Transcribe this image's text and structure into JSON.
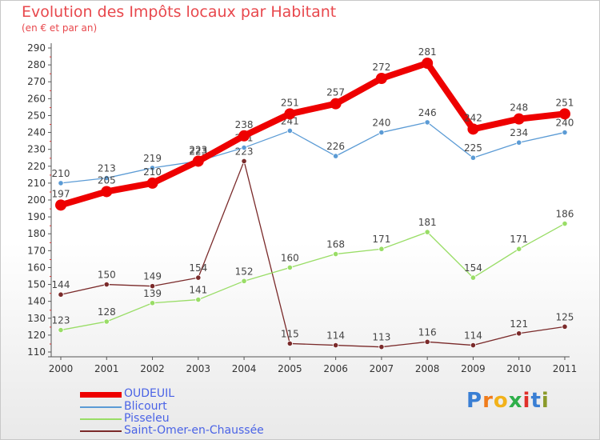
{
  "header": {
    "title": "Evolution des Impôts locaux par Habitant",
    "subtitle": "(en € et par an)"
  },
  "chart_data": {
    "type": "line",
    "title": "Evolution des Impôts locaux par Habitant",
    "subtitle": "(en € et par an)",
    "xlabel": "",
    "ylabel": "",
    "categories": [
      "2000",
      "2001",
      "2002",
      "2003",
      "2004",
      "2005",
      "2006",
      "2007",
      "2008",
      "2009",
      "2010",
      "2011"
    ],
    "ylim": [
      110,
      290
    ],
    "yticks": [
      110,
      120,
      130,
      140,
      150,
      160,
      170,
      180,
      190,
      200,
      210,
      220,
      230,
      240,
      250,
      260,
      270,
      280,
      290
    ],
    "grid": false,
    "legend_position": "bottom-left",
    "series": [
      {
        "name": "OUDEUIL",
        "color": "#ee0000",
        "values": [
          197,
          205,
          210,
          223,
          238,
          251,
          257,
          272,
          281,
          242,
          248,
          251
        ]
      },
      {
        "name": "Blicourt",
        "color": "#5b9bd5",
        "values": [
          210,
          213,
          219,
          223,
          231,
          241,
          226,
          240,
          246,
          225,
          234,
          240
        ]
      },
      {
        "name": "Pisseleu",
        "color": "#99dd66",
        "values": [
          123,
          128,
          139,
          141,
          152,
          160,
          168,
          171,
          181,
          154,
          171,
          186
        ]
      },
      {
        "name": "Saint-Omer-en-Chaussée",
        "color": "#7a2a2a",
        "values": [
          144,
          150,
          149,
          154,
          223,
          115,
          114,
          113,
          116,
          114,
          121,
          125
        ]
      }
    ]
  },
  "legend": {
    "items": [
      {
        "label": "OUDEUIL",
        "color": "#ee0000"
      },
      {
        "label": "Blicourt",
        "color": "#5b9bd5"
      },
      {
        "label": "Pisseleu",
        "color": "#99dd66"
      },
      {
        "label": "Saint-Omer-en-Chaussée",
        "color": "#7a2a2a"
      }
    ]
  },
  "logo": {
    "letters": [
      "P",
      "r",
      "o",
      "x",
      "i",
      "t",
      "i"
    ],
    "colors": [
      "#3a7fd4",
      "#f07c1c",
      "#f2b21a",
      "#2eaf4a",
      "#e0302a",
      "#3a7fd4",
      "#8a9a2a"
    ]
  }
}
